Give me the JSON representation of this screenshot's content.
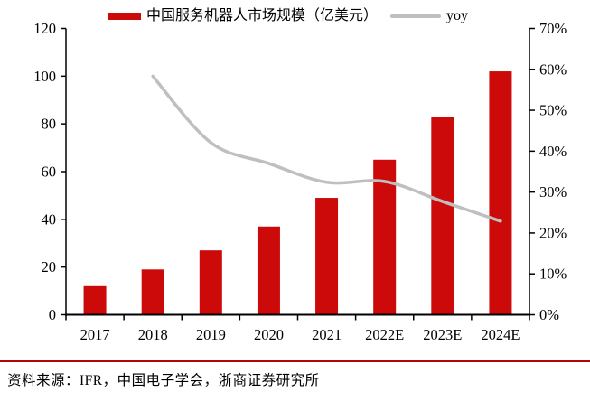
{
  "chart_data": {
    "type": "bar",
    "title": "",
    "categories": [
      "2017",
      "2018",
      "2019",
      "2020",
      "2021",
      "2022E",
      "2023E",
      "2024E"
    ],
    "series": [
      {
        "name": "中国服务机器人市场规模（亿美元）",
        "type": "bar",
        "axis": "left",
        "color": "#CC0A0A",
        "values": [
          12,
          19,
          27,
          37,
          49,
          65,
          83,
          102
        ]
      },
      {
        "name": "yoy",
        "type": "line",
        "axis": "right",
        "color": "#BFBFBF",
        "values": [
          null,
          58.3,
          42.1,
          37.0,
          32.4,
          32.6,
          27.7,
          22.9
        ]
      }
    ],
    "left_axis": {
      "min": 0,
      "max": 120,
      "step": 20,
      "tick_labels": [
        "0",
        "20",
        "40",
        "60",
        "80",
        "100",
        "120"
      ]
    },
    "right_axis": {
      "min": 0,
      "max": 70,
      "step": 10,
      "tick_labels": [
        "0%",
        "10%",
        "20%",
        "30%",
        "40%",
        "50%",
        "60%",
        "70%"
      ]
    },
    "grid": false,
    "legend_position": "top"
  },
  "legend": {
    "bar_label": "中国服务机器人市场规模（亿美元）",
    "line_label": "yoy"
  },
  "footer": {
    "source_text": "资料来源：IFR，中国电子学会，浙商证券研究所"
  },
  "colors": {
    "bar": "#CC0A0A",
    "line": "#BFBFBF",
    "divider": "#B40606",
    "axis": "#000000"
  }
}
